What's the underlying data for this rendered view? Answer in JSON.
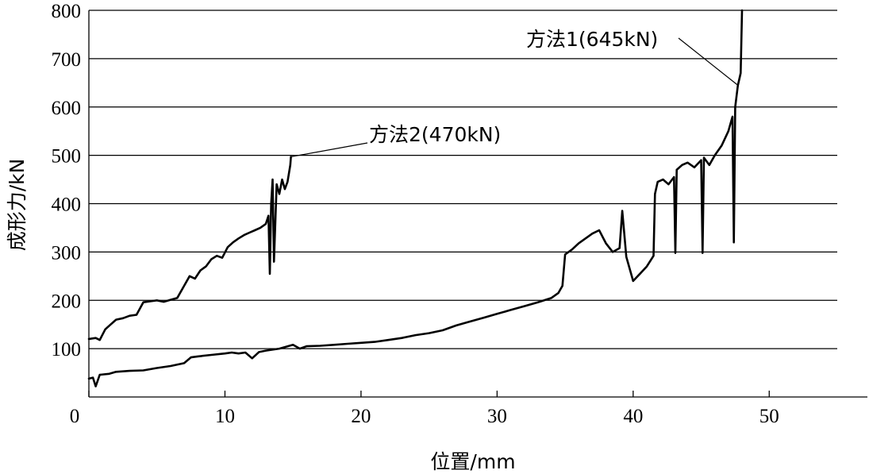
{
  "chart_data": {
    "type": "line",
    "xlabel": "位置/mm",
    "ylabel": "成形力/kN",
    "xlim": [
      0,
      55
    ],
    "ylim": [
      0,
      800
    ],
    "xticks": [
      0,
      10,
      20,
      30,
      40,
      50
    ],
    "yticks": [
      100,
      200,
      300,
      400,
      500,
      600,
      700,
      800
    ],
    "grid": "horizontal",
    "series": [
      {
        "name": "方法2(470kN)",
        "points": [
          [
            0,
            120
          ],
          [
            0.5,
            122
          ],
          [
            0.8,
            118
          ],
          [
            1.2,
            140
          ],
          [
            1.6,
            150
          ],
          [
            2.0,
            160
          ],
          [
            2.5,
            163
          ],
          [
            3.0,
            168
          ],
          [
            3.5,
            170
          ],
          [
            4.0,
            196
          ],
          [
            4.5,
            198
          ],
          [
            5.0,
            200
          ],
          [
            5.5,
            197
          ],
          [
            6.0,
            201
          ],
          [
            6.5,
            205
          ],
          [
            7.0,
            230
          ],
          [
            7.4,
            250
          ],
          [
            7.8,
            245
          ],
          [
            8.2,
            262
          ],
          [
            8.6,
            270
          ],
          [
            9.0,
            285
          ],
          [
            9.4,
            292
          ],
          [
            9.8,
            288
          ],
          [
            10.2,
            310
          ],
          [
            10.6,
            320
          ],
          [
            11.0,
            328
          ],
          [
            11.4,
            335
          ],
          [
            11.8,
            340
          ],
          [
            12.2,
            345
          ],
          [
            12.6,
            350
          ],
          [
            13.0,
            358
          ],
          [
            13.2,
            375
          ],
          [
            13.3,
            255
          ],
          [
            13.4,
            400
          ],
          [
            13.5,
            450
          ],
          [
            13.6,
            280
          ],
          [
            13.8,
            440
          ],
          [
            14.0,
            420
          ],
          [
            14.2,
            450
          ],
          [
            14.4,
            430
          ],
          [
            14.6,
            445
          ],
          [
            14.8,
            480
          ],
          [
            14.85,
            497
          ]
        ]
      },
      {
        "name": "方法1(645kN)",
        "points": [
          [
            0,
            38
          ],
          [
            0.3,
            40
          ],
          [
            0.5,
            22
          ],
          [
            0.8,
            46
          ],
          [
            1.5,
            48
          ],
          [
            2.0,
            52
          ],
          [
            3.0,
            54
          ],
          [
            4.0,
            55
          ],
          [
            5.0,
            60
          ],
          [
            6.0,
            64
          ],
          [
            7.0,
            70
          ],
          [
            7.5,
            82
          ],
          [
            8.0,
            84
          ],
          [
            9.0,
            87
          ],
          [
            10.0,
            90
          ],
          [
            10.5,
            92
          ],
          [
            11.0,
            90
          ],
          [
            11.5,
            92
          ],
          [
            12.0,
            80
          ],
          [
            12.5,
            93
          ],
          [
            13.0,
            96
          ],
          [
            14.0,
            100
          ],
          [
            15.0,
            108
          ],
          [
            15.5,
            100
          ],
          [
            16.0,
            105
          ],
          [
            17.0,
            106
          ],
          [
            18.0,
            108
          ],
          [
            19.0,
            110
          ],
          [
            20.0,
            112
          ],
          [
            21.0,
            114
          ],
          [
            22.0,
            118
          ],
          [
            23.0,
            122
          ],
          [
            24.0,
            128
          ],
          [
            25.0,
            132
          ],
          [
            26.0,
            138
          ],
          [
            27.0,
            148
          ],
          [
            28.0,
            156
          ],
          [
            29.0,
            164
          ],
          [
            30.0,
            172
          ],
          [
            31.0,
            180
          ],
          [
            32.0,
            188
          ],
          [
            33.0,
            196
          ],
          [
            34.0,
            205
          ],
          [
            34.5,
            215
          ],
          [
            34.8,
            230
          ],
          [
            35.0,
            295
          ],
          [
            35.5,
            305
          ],
          [
            36.0,
            318
          ],
          [
            36.5,
            328
          ],
          [
            37.0,
            338
          ],
          [
            37.5,
            345
          ],
          [
            38.0,
            318
          ],
          [
            38.5,
            300
          ],
          [
            39.0,
            308
          ],
          [
            39.2,
            385
          ],
          [
            39.5,
            290
          ],
          [
            40.0,
            240
          ],
          [
            40.5,
            255
          ],
          [
            41.0,
            270
          ],
          [
            41.5,
            292
          ],
          [
            41.6,
            420
          ],
          [
            41.8,
            445
          ],
          [
            42.2,
            450
          ],
          [
            42.6,
            440
          ],
          [
            43.0,
            455
          ],
          [
            43.1,
            298
          ],
          [
            43.2,
            470
          ],
          [
            43.6,
            480
          ],
          [
            44.0,
            485
          ],
          [
            44.5,
            475
          ],
          [
            45.0,
            490
          ],
          [
            45.1,
            298
          ],
          [
            45.2,
            495
          ],
          [
            45.6,
            480
          ],
          [
            46.0,
            500
          ],
          [
            46.5,
            520
          ],
          [
            47.0,
            550
          ],
          [
            47.3,
            580
          ],
          [
            47.4,
            320
          ],
          [
            47.5,
            600
          ],
          [
            47.7,
            645
          ],
          [
            47.9,
            670
          ],
          [
            48.0,
            800
          ]
        ]
      }
    ],
    "annotations": [
      {
        "text": "方法1(645kN)",
        "point": [
          47.7,
          645
        ]
      },
      {
        "text": "方法2(470kN)",
        "point": [
          14.85,
          497
        ]
      }
    ]
  }
}
